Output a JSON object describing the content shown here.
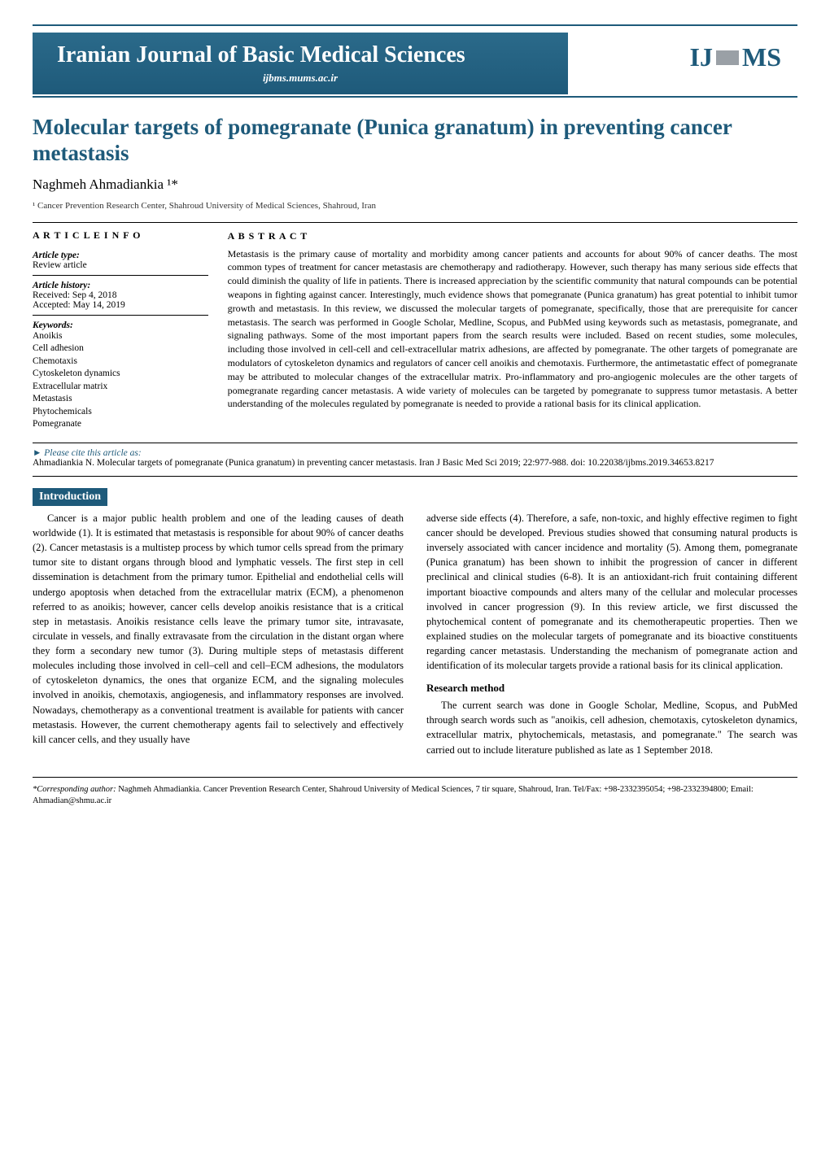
{
  "header": {
    "journal_title": "Iranian Journal of Basic Medical Sciences",
    "url": "ijbms.mums.ac.ir",
    "logo_left": "IJ",
    "logo_right": "MS"
  },
  "article": {
    "title": "Molecular targets of pomegranate (Punica granatum) in preventing cancer metastasis",
    "author": "Naghmeh Ahmadiankia ¹*",
    "affiliation": "¹ Cancer Prevention Research Center, Shahroud University of Medical Sciences, Shahroud, Iran"
  },
  "info": {
    "heading": "A R T I C L E  I N F O",
    "type_label": "Article type:",
    "type_value": "Review article",
    "history_label": "Article history:",
    "received": "Received: Sep 4, 2018",
    "accepted": "Accepted: May 14, 2019",
    "keywords_label": "Keywords:",
    "keywords": "Anoikis\nCell adhesion\nChemotaxis\nCytoskeleton dynamics\nExtracellular matrix\nMetastasis\nPhytochemicals\nPomegranate"
  },
  "abstract": {
    "heading": "A B S T R A C T",
    "text": "Metastasis is the primary cause of mortality and morbidity among cancer patients and accounts for about 90% of cancer deaths. The most common types of treatment for cancer metastasis are chemotherapy and radiotherapy. However, such therapy has many serious side effects that could diminish the quality of life in patients. There is increased appreciation by the scientific community that natural compounds can be potential weapons in fighting against cancer. Interestingly, much evidence shows that pomegranate (Punica granatum) has great potential to inhibit tumor growth and metastasis. In this review, we discussed the molecular targets of pomegranate, specifically, those that are prerequisite for cancer metastasis. The search was performed in Google Scholar, Medline, Scopus, and PubMed using keywords such as metastasis, pomegranate, and signaling pathways. Some of the most important papers from the search results were included. Based on recent studies, some molecules, including those involved in cell-cell and cell-extracellular matrix adhesions, are affected by pomegranate. The other targets of pomegranate are modulators of cytoskeleton dynamics and regulators of cancer cell anoikis and chemotaxis. Furthermore, the antimetastatic effect of pomegranate may be attributed to molecular changes of the extracellular matrix. Pro-inflammatory and pro-angiogenic molecules are the other targets of pomegranate regarding cancer metastasis. A wide variety of molecules can be targeted by pomegranate to suppress tumor metastasis. A better understanding of the molecules regulated by pomegranate is needed to provide a rational basis for its clinical application."
  },
  "citation": {
    "label": "► Please cite this article as:",
    "text": "Ahmadiankia N. Molecular targets of pomegranate (Punica granatum) in preventing cancer metastasis. Iran J Basic Med Sci 2019; 22:977-988. doi: 10.22038/ijbms.2019.34653.8217"
  },
  "intro": {
    "heading": "Introduction",
    "col1": "Cancer is a major public health problem and one of the leading causes of death worldwide (1). It is estimated that metastasis is responsible for about 90% of cancer deaths (2). Cancer metastasis is a multistep process by which tumor cells spread from the primary tumor site to distant organs through blood and lymphatic vessels. The first step in cell dissemination is detachment from the primary tumor. Epithelial and endothelial cells will undergo apoptosis when detached from the extracellular matrix (ECM), a phenomenon referred to as anoikis; however, cancer cells develop anoikis resistance that is a critical step in metastasis. Anoikis resistance cells leave the primary tumor site, intravasate, circulate in vessels, and finally extravasate from the circulation in the distant organ where they form a secondary new tumor (3). During multiple steps of metastasis different molecules including those involved in cell–cell and cell–ECM adhesions, the modulators of cytoskeleton dynamics, the ones that organize ECM, and the signaling molecules involved in anoikis, chemotaxis, angiogenesis, and inflammatory responses are involved. Nowadays, chemotherapy as a conventional treatment is available for patients with cancer metastasis. However, the current chemotherapy agents fail to selectively and effectively kill cancer cells, and they usually have",
    "col2a": "adverse side effects (4). Therefore, a safe, non-toxic, and highly effective regimen to fight cancer should be developed. Previous studies showed that consuming natural products is inversely associated with cancer incidence and mortality (5). Among them, pomegranate (Punica granatum) has been shown to inhibit the progression of cancer in different preclinical and clinical studies (6-8). It is an antioxidant-rich fruit containing different important bioactive compounds and alters many of the cellular and molecular processes involved in cancer progression (9). In this review article, we first discussed the phytochemical content of pomegranate and its chemotherapeutic properties. Then we explained studies on the molecular targets of pomegranate and its bioactive constituents regarding cancer metastasis. Understanding the mechanism of pomegranate action and identification of its molecular targets provide a rational basis for its clinical application.",
    "research_heading": "Research method",
    "col2b": "The current search was done in Google Scholar, Medline, Scopus, and PubMed through search words such as \"anoikis, cell adhesion, chemotaxis, cytoskeleton dynamics, extracellular matrix, phytochemicals, metastasis, and pomegranate.\" The search was carried out to include literature published as late as 1 September 2018."
  },
  "footer": {
    "label": "*Corresponding author:",
    "text": " Naghmeh Ahmadiankia. Cancer Prevention Research Center, Shahroud University of Medical Sciences, 7 tir square, Shahroud, Iran. Tel/Fax: +98-2332395054; +98-2332394800; Email: Ahmadian@shmu.ac.ir"
  },
  "colors": {
    "primary": "#1e5a7a",
    "text": "#000000",
    "background": "#ffffff"
  }
}
